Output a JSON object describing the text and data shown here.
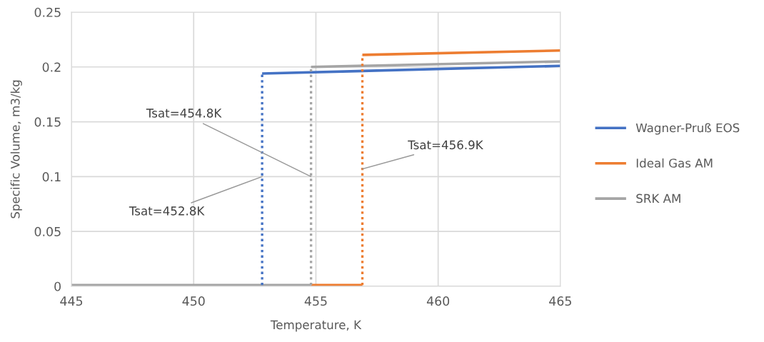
{
  "chart_data": {
    "type": "line",
    "xlabel": "Temperature, K",
    "ylabel": "Specific Volume, m3/kg",
    "xlim": [
      445,
      465
    ],
    "xticks": [
      445,
      450,
      455,
      460,
      465
    ],
    "ylim": [
      0,
      0.25
    ],
    "yticks": [
      0,
      0.05,
      0.1,
      0.15,
      0.2,
      0.25
    ],
    "grid": true,
    "legend": "right",
    "marker": "none",
    "series": [
      {
        "name": "Wagner-Pruß EOS",
        "color": "#4472c4",
        "line_style": "solid",
        "x": [
          452.8,
          465
        ],
        "values": [
          0.194,
          0.201
        ]
      },
      {
        "name": "Ideal Gas AM",
        "color": "#ed7d31",
        "line_style": "solid",
        "x": [
          456.9,
          465
        ],
        "values": [
          0.211,
          0.215
        ]
      },
      {
        "name": "SRK AM",
        "color": "#a5a5a5",
        "line_style": "solid",
        "x": [
          454.8,
          465
        ],
        "values": [
          0.2,
          0.205
        ]
      },
      {
        "color": "#ed7d31",
        "line_style": "solid",
        "x": [
          454.8,
          456.9
        ],
        "values": [
          0.0011,
          0.0011
        ]
      },
      {
        "color": "#a5a5a5",
        "line_style": "solid",
        "x": [
          445,
          454.8
        ],
        "values": [
          0.0011,
          0.0011
        ]
      },
      {
        "color": "#4472c4",
        "line_style": "dotted",
        "x": [
          452.8,
          452.8
        ],
        "values": [
          0.0011,
          0.194
        ]
      },
      {
        "color": "#ed7d31",
        "line_style": "dotted",
        "x": [
          456.9,
          456.9
        ],
        "values": [
          0.0011,
          0.211
        ]
      },
      {
        "color": "#a5a5a5",
        "line_style": "dotted",
        "x": [
          454.8,
          454.8
        ],
        "values": [
          0.0011,
          0.2
        ]
      }
    ],
    "annotations": [
      {
        "text": "Tsat=452.8K",
        "x": 452.8,
        "y": 0.1
      },
      {
        "text": "Tsat=454.8K",
        "x": 454.8,
        "y": 0.1
      },
      {
        "text": "Tsat=456.9K",
        "x": 456.9,
        "y": 0.107
      }
    ]
  }
}
